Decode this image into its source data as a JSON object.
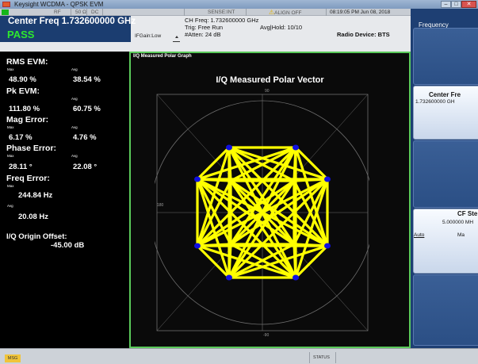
{
  "window": {
    "title": "Keysight WCDMA - QPSK EVM",
    "buttons": [
      "minimize",
      "maximize",
      "close"
    ]
  },
  "status_strip": {
    "rf": "RF",
    "impedance": "50 Ω",
    "coupling": "DC",
    "sense": "SENSE:INT",
    "align": "ALIGN OFF",
    "timestamp": "08:19:05 PM Jun 08, 2018"
  },
  "header": {
    "center_freq": "Center Freq 1.732600000 GHz",
    "pass_label": "PASS",
    "ifgain": "IFGain:Low",
    "ch_freq": "CH Freq: 1.732600000 GHz",
    "trig": "Trig: Free Run",
    "atten": "#Atten: 24 dB",
    "avg_hold": "Avg|Hold: 10/10",
    "radio_device": "Radio Device: BTS"
  },
  "results": {
    "max_label": "Max",
    "avg_label": "Avg",
    "rms_evm": {
      "name": "RMS EVM:",
      "max": "48.90 %",
      "avg": "38.54 %"
    },
    "pk_evm": {
      "name": "Pk EVM:",
      "max": "111.80 %",
      "avg": "60.75 %"
    },
    "mag_error": {
      "name": "Mag Error:",
      "max": "6.17 %",
      "avg": "4.76 %"
    },
    "phase_error": {
      "name": "Phase Error:",
      "max": "28.11 °",
      "avg": "22.08 °"
    },
    "freq_error": {
      "name": "Freq Error:",
      "max": "244.84 Hz",
      "avg": "20.08 Hz"
    },
    "iq_origin": {
      "name": "I/Q Origin Offset:",
      "value": "-45.00 dB"
    }
  },
  "graph": {
    "label": "I/Q Measured Polar Graph",
    "title": "I/Q Measured Polar Vector",
    "axis_labels": {
      "top": "90",
      "left": "180",
      "bottom": "-90"
    },
    "trace_color": "#ffff00",
    "point_color": "#1010e0",
    "grid_color": "#6e6e6e"
  },
  "softkeys": {
    "menu_title": "Frequency",
    "center_freq_label": "Center Fre",
    "center_freq_value": "1.732600000 GH",
    "cf_step_label": "CF Ste",
    "cf_step_value": "5.000000 MH",
    "cf_step_auto": "Auto",
    "cf_step_man": "Ma"
  },
  "statusbar": {
    "msg": "MSG",
    "status": "STATUS"
  },
  "colors": {
    "pass_green": "#2ee82e",
    "header_blue": "#1b3d70",
    "softkey_blue": "#1e3f73",
    "graph_border": "#5ac95a"
  }
}
